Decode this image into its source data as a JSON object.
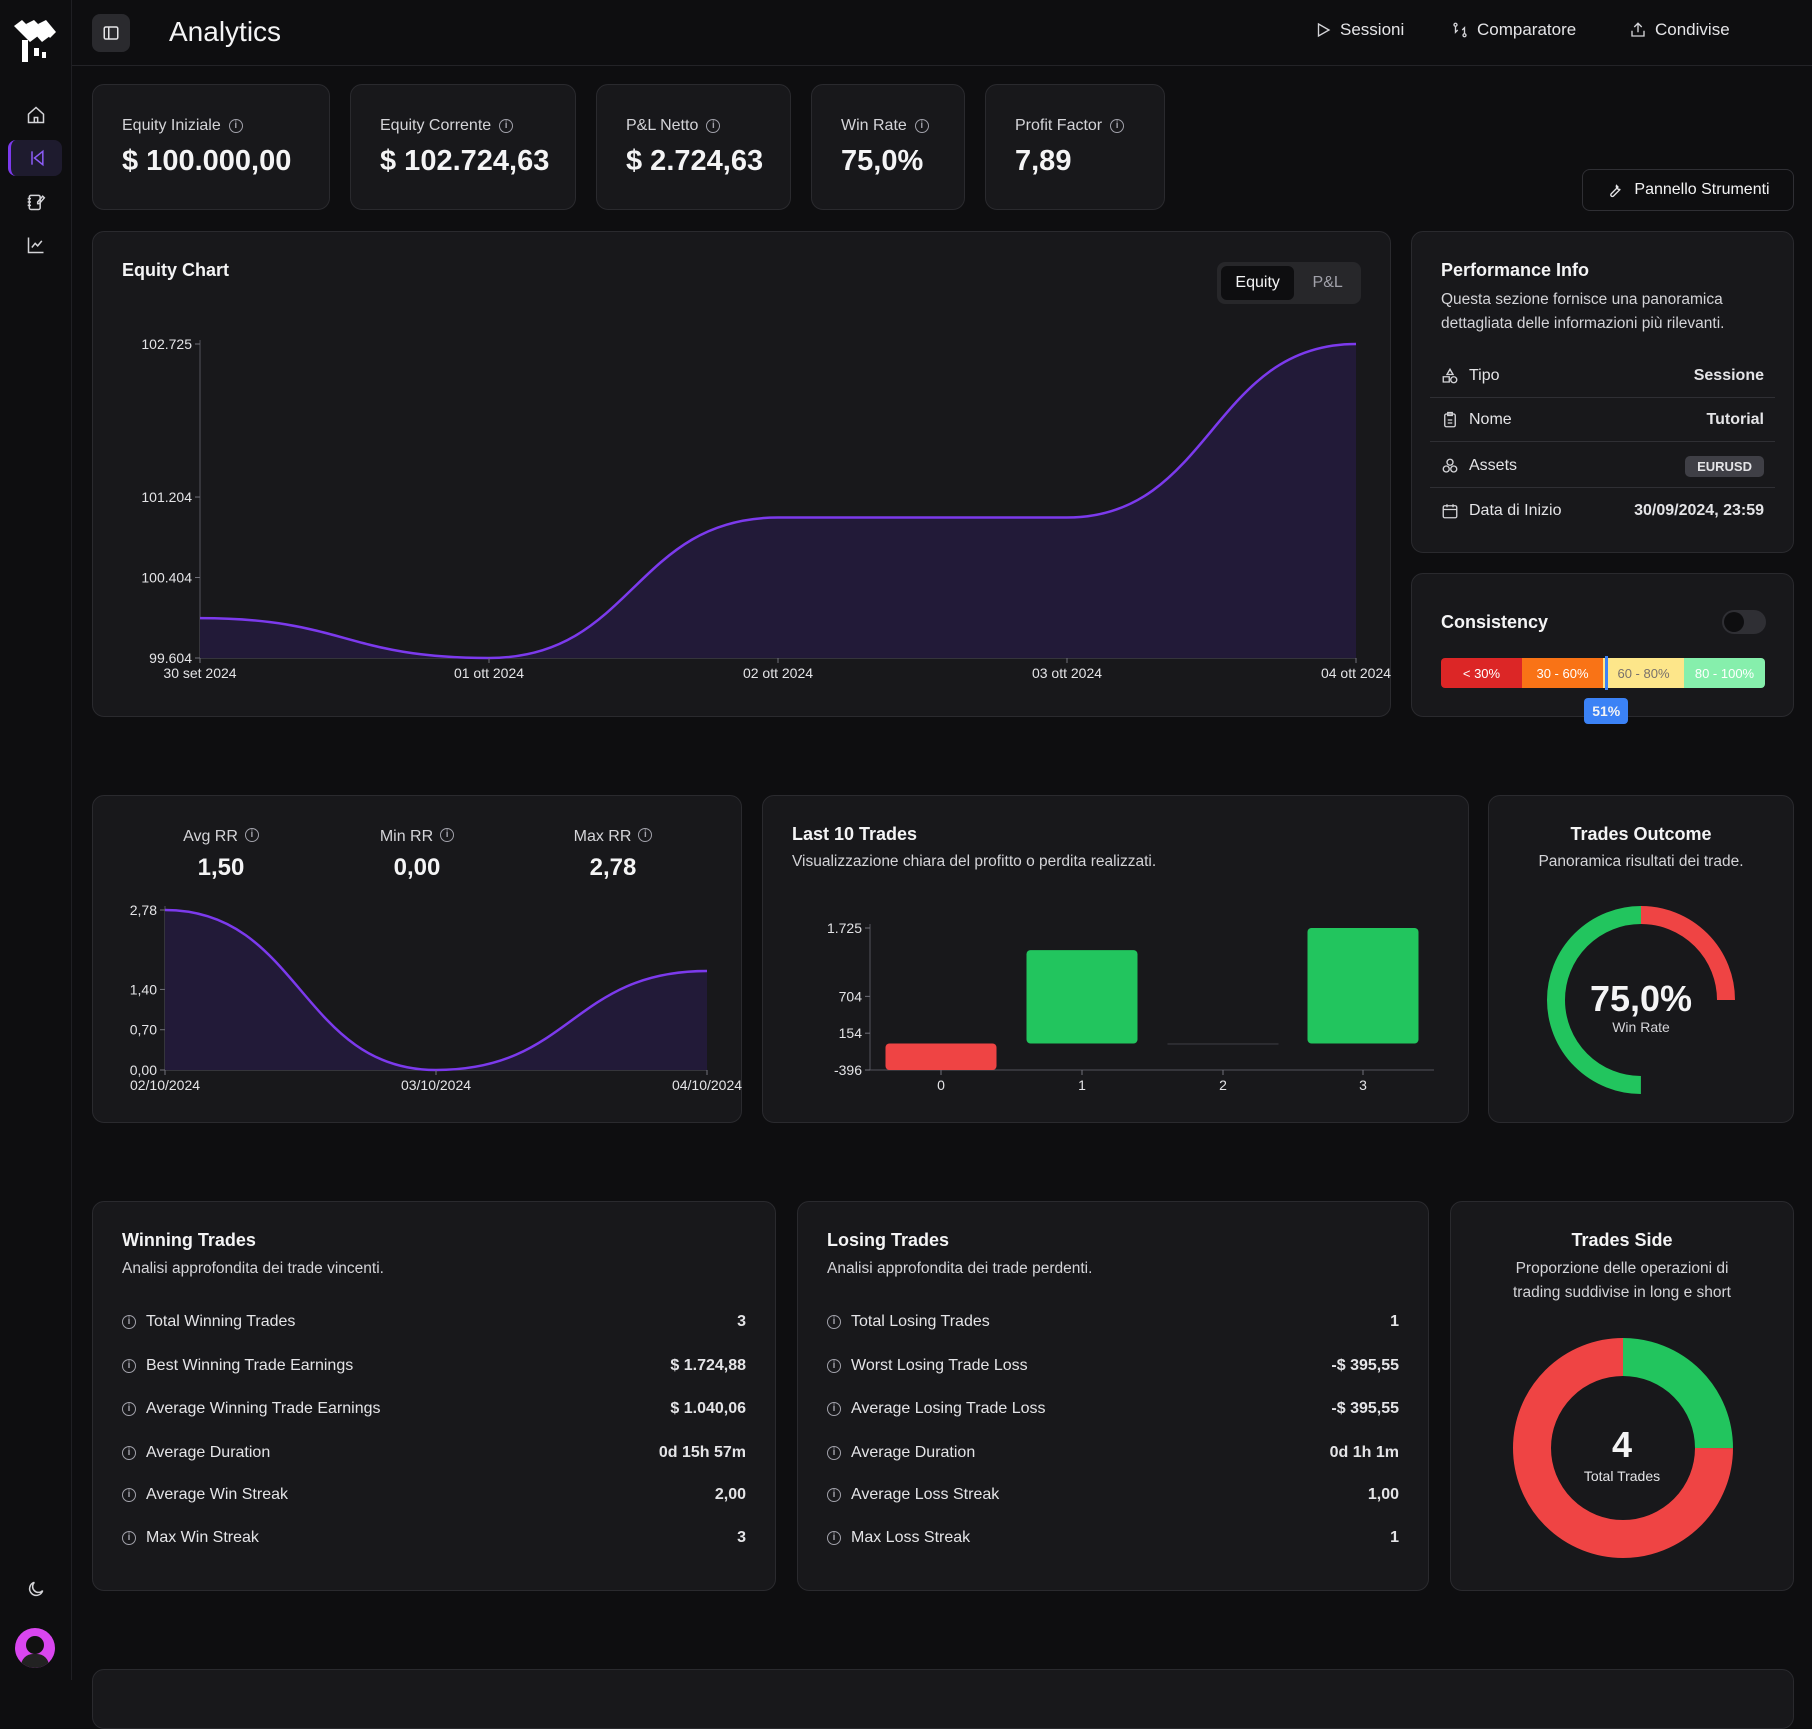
{
  "header": {
    "title": "Analytics",
    "nav": [
      {
        "label": "Sessioni",
        "icon": "play-icon"
      },
      {
        "label": "Comparatore",
        "icon": "compare-icon"
      },
      {
        "label": "Condivise",
        "icon": "share-icon"
      }
    ]
  },
  "sidebar": {
    "items": [
      "home-icon",
      "analytics-icon",
      "journal-icon",
      "chart-icon"
    ],
    "bottom": [
      "theme-icon",
      "avatar"
    ]
  },
  "stats": [
    {
      "label": "Equity Iniziale",
      "value": "$ 100.000,00"
    },
    {
      "label": "Equity Corrente",
      "value": "$ 102.724,63"
    },
    {
      "label": "P&L Netto",
      "value": "$ 2.724,63"
    },
    {
      "label": "Win Rate",
      "value": "75,0%"
    },
    {
      "label": "Profit Factor",
      "value": "7,89"
    }
  ],
  "tools_button": "Pannello Strumenti",
  "equity": {
    "title": "Equity Chart",
    "toggle": [
      "Equity",
      "P&L"
    ],
    "active": "Equity",
    "accent": "#7c3aed",
    "chart_data": {
      "type": "area",
      "x": [
        "30 set 2024",
        "01 ott 2024",
        "02 ott 2024",
        "03 ott 2024",
        "04 ott 2024"
      ],
      "values": [
        100000,
        99604,
        101000,
        101000,
        102725
      ],
      "yticks": [
        {
          "v": 99604,
          "label": "99.604"
        },
        {
          "v": 100404,
          "label": "100.404"
        },
        {
          "v": 101204,
          "label": "101.204"
        },
        {
          "v": 102725,
          "label": "102.725"
        }
      ],
      "ylim": [
        99604,
        102725
      ]
    }
  },
  "perf": {
    "title": "Performance Info",
    "desc": "Questa sezione fornisce una panoramica dettagliata delle informazioni più rilevanti.",
    "rows": [
      {
        "label": "Tipo",
        "value": "Sessione",
        "icon": "type-icon"
      },
      {
        "label": "Nome",
        "value": "Tutorial",
        "icon": "clipboard-icon"
      },
      {
        "label": "Assets",
        "value": "EURUSD",
        "icon": "assets-icon"
      },
      {
        "label": "Data di Inizio",
        "value": "30/09/2024, 23:59",
        "icon": "calendar-icon"
      }
    ]
  },
  "consistency": {
    "title": "Consistency",
    "toggle_on": false,
    "segments": [
      {
        "label": "< 30%",
        "color": "#dc2626"
      },
      {
        "label": "30 - 60%",
        "color": "#f97316"
      },
      {
        "label": "60 - 80%",
        "color": "#fde68a"
      },
      {
        "label": "80 - 100%",
        "color": "#86efac"
      }
    ],
    "value": 51,
    "value_label": "51%"
  },
  "rr": {
    "stats": [
      {
        "label": "Avg RR",
        "value": "1,50"
      },
      {
        "label": "Min RR",
        "value": "0,00"
      },
      {
        "label": "Max RR",
        "value": "2,78"
      }
    ],
    "chart_data": {
      "type": "area",
      "x": [
        "02/10/2024",
        "03/10/2024",
        "04/10/2024"
      ],
      "values": [
        2.78,
        0.0,
        1.72
      ],
      "yticks": [
        {
          "v": 0,
          "label": "0,00"
        },
        {
          "v": 0.7,
          "label": "0,70"
        },
        {
          "v": 1.4,
          "label": "1,40"
        },
        {
          "v": 2.78,
          "label": "2,78"
        }
      ],
      "ylim": [
        0,
        2.78
      ]
    }
  },
  "last10": {
    "title": "Last 10 Trades",
    "desc": "Visualizzazione chiara del profitto o perdita realizzati.",
    "chart_data": {
      "type": "bar",
      "categories": [
        "0",
        "1",
        "2",
        "3"
      ],
      "values": [
        -396,
        1395,
        0,
        1725
      ],
      "yticks": [
        {
          "v": -396,
          "label": "-396"
        },
        {
          "v": 154,
          "label": "154"
        },
        {
          "v": 704,
          "label": "704"
        },
        {
          "v": 1725,
          "label": "1.725"
        }
      ],
      "ylim": [
        -396,
        1725
      ],
      "colors": {
        "positive": "#22c55e",
        "negative": "#ef4444"
      }
    }
  },
  "outcome": {
    "title": "Trades Outcome",
    "desc": "Panoramica risultati dei trade.",
    "value": "75,0%",
    "sub": "Win Rate",
    "chart_data": {
      "type": "pie",
      "values": [
        75,
        25
      ],
      "colors": [
        "#22c55e",
        "#ef4444"
      ]
    }
  },
  "winning": {
    "title": "Winning Trades",
    "desc": "Analisi approfondita dei trade vincenti.",
    "rows": [
      {
        "label": "Total Winning Trades",
        "value": "3"
      },
      {
        "label": "Best Winning Trade Earnings",
        "value": "$ 1.724,88"
      },
      {
        "label": "Average Winning Trade Earnings",
        "value": "$ 1.040,06"
      },
      {
        "label": "Average Duration",
        "value": "0d 15h 57m"
      },
      {
        "label": "Average Win Streak",
        "value": "2,00"
      },
      {
        "label": "Max Win Streak",
        "value": "3"
      }
    ]
  },
  "losing": {
    "title": "Losing Trades",
    "desc": "Analisi approfondita dei trade perdenti.",
    "rows": [
      {
        "label": "Total Losing Trades",
        "value": "1"
      },
      {
        "label": "Worst Losing Trade Loss",
        "value": "-$ 395,55"
      },
      {
        "label": "Average Losing Trade Loss",
        "value": "-$ 395,55"
      },
      {
        "label": "Average Duration",
        "value": "0d 1h 1m"
      },
      {
        "label": "Average Loss Streak",
        "value": "1,00"
      },
      {
        "label": "Max Loss Streak",
        "value": "1"
      }
    ]
  },
  "side": {
    "title": "Trades Side",
    "desc": "Proporzione delle operazioni di trading suddivise in long e short",
    "value": "4",
    "sub": "Total Trades",
    "chart_data": {
      "type": "pie",
      "values": [
        25,
        75
      ],
      "colors": [
        "#22c55e",
        "#ef4444"
      ]
    }
  }
}
